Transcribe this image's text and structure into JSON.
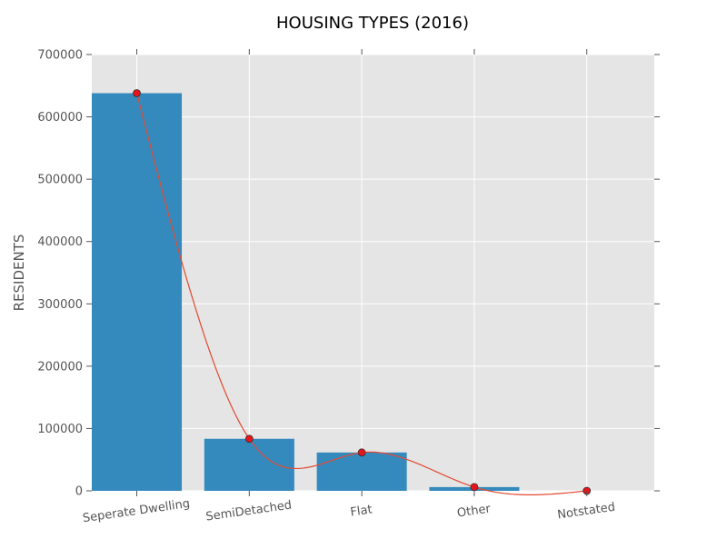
{
  "chart_data": {
    "type": "bar",
    "title": "HOUSING TYPES (2016)",
    "xlabel": "",
    "ylabel": "RESIDENTS",
    "categories": [
      "Seperate Dwelling",
      "SemiDetached",
      "Flat",
      "Other",
      "Notstated"
    ],
    "values": [
      638000,
      83500,
      61500,
      6000,
      0
    ],
    "ylim": [
      0,
      700000
    ],
    "yticks": [
      0,
      100000,
      200000,
      300000,
      400000,
      500000,
      600000,
      700000
    ],
    "x_tick_rotation_deg": -8,
    "grid": true,
    "overlay_line": {
      "type": "smooth-line-with-markers",
      "values": [
        638000,
        83500,
        61500,
        6000,
        0
      ]
    },
    "colors": {
      "bar": "#348ABD",
      "plot_background": "#E5E5E5",
      "grid": "#FFFFFF",
      "line": "#E24A33",
      "marker_fill": "#E8141C",
      "marker_edge": "#333333",
      "text": "#555555",
      "title": "#000000"
    }
  }
}
